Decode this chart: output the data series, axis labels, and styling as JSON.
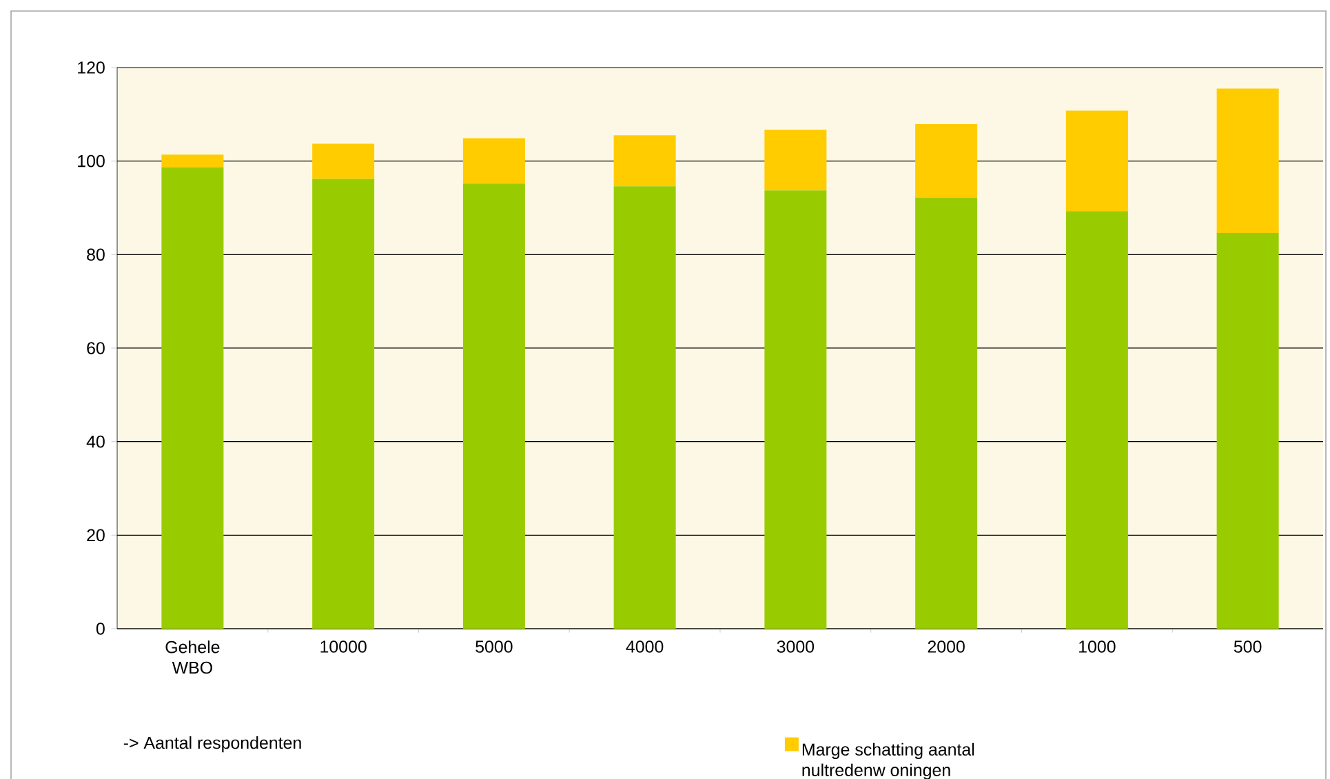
{
  "chart_data": {
    "type": "bar",
    "stacked": true,
    "categories": [
      "Gehele WBO",
      "10000",
      "5000",
      "4000",
      "3000",
      "2000",
      "1000",
      "500"
    ],
    "series": [
      {
        "color": "#99cc00",
        "values": [
          98.7,
          96.2,
          95.2,
          94.6,
          93.7,
          92.2,
          89.3,
          84.6
        ]
      },
      {
        "name": "Marge schatting aantal nultredenw oningen",
        "color": "#ffcc00",
        "values": [
          2.7,
          7.5,
          9.7,
          10.9,
          13.0,
          15.7,
          21.5,
          30.9
        ]
      }
    ],
    "ylim": [
      0,
      120
    ],
    "yticks": [
      0,
      20,
      40,
      60,
      80,
      100,
      120
    ],
    "grid": "y",
    "legend": "bottom",
    "annotations": [
      "-> Aantal respondenten"
    ]
  }
}
